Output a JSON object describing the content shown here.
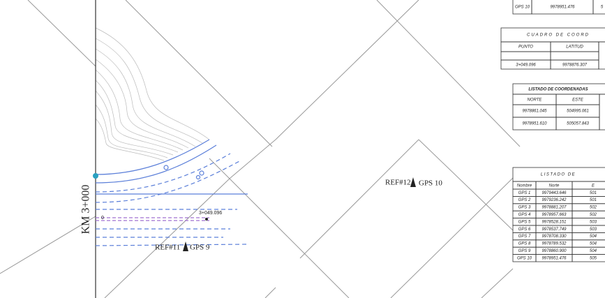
{
  "drawing": {
    "station_label": "KM 3+000",
    "station_chainage": "3+049.096",
    "station_zero": "0",
    "ref11": "REF#11",
    "gps9": "GPS 9",
    "ref12": "REF#12",
    "gps10": "GPS 10"
  },
  "top_fragment": {
    "cells": [
      "GPS 10",
      "9978951.476",
      "5"
    ]
  },
  "cuadro": {
    "title": "CUADRO DE COORD",
    "headers": [
      "PUNTO",
      "LATITUD"
    ],
    "row": [
      "3+049.096",
      "9978876.307"
    ]
  },
  "listado_coord": {
    "title": "LISTADO DE COORDENADAS",
    "headers": [
      "NORTE",
      "ESTE"
    ],
    "rows": [
      [
        "9978861.045",
        "504995.061"
      ],
      [
        "9978951.610",
        "505057.843"
      ]
    ]
  },
  "listado_gps": {
    "title": "LISTADO DE",
    "headers": [
      "Nombre",
      "Norte",
      "E"
    ],
    "rows": [
      [
        "GPS 1",
        "9979443.646",
        "501"
      ],
      [
        "GPS 2",
        "9979236.242",
        "501"
      ],
      [
        "GPS 3",
        "9978881.207",
        "502"
      ],
      [
        "GPS 4",
        "9978957.663",
        "502"
      ],
      [
        "GPS 5",
        "9978528.151",
        "503"
      ],
      [
        "GPS 6",
        "9978537.749",
        "503"
      ],
      [
        "GPS 7",
        "9978708.330",
        "504"
      ],
      [
        "GPS 8",
        "9978789.532",
        "504"
      ],
      [
        "GPS 9",
        "9978860.900",
        "504"
      ],
      [
        "GPS 10",
        "9978951.476",
        "505"
      ]
    ]
  }
}
